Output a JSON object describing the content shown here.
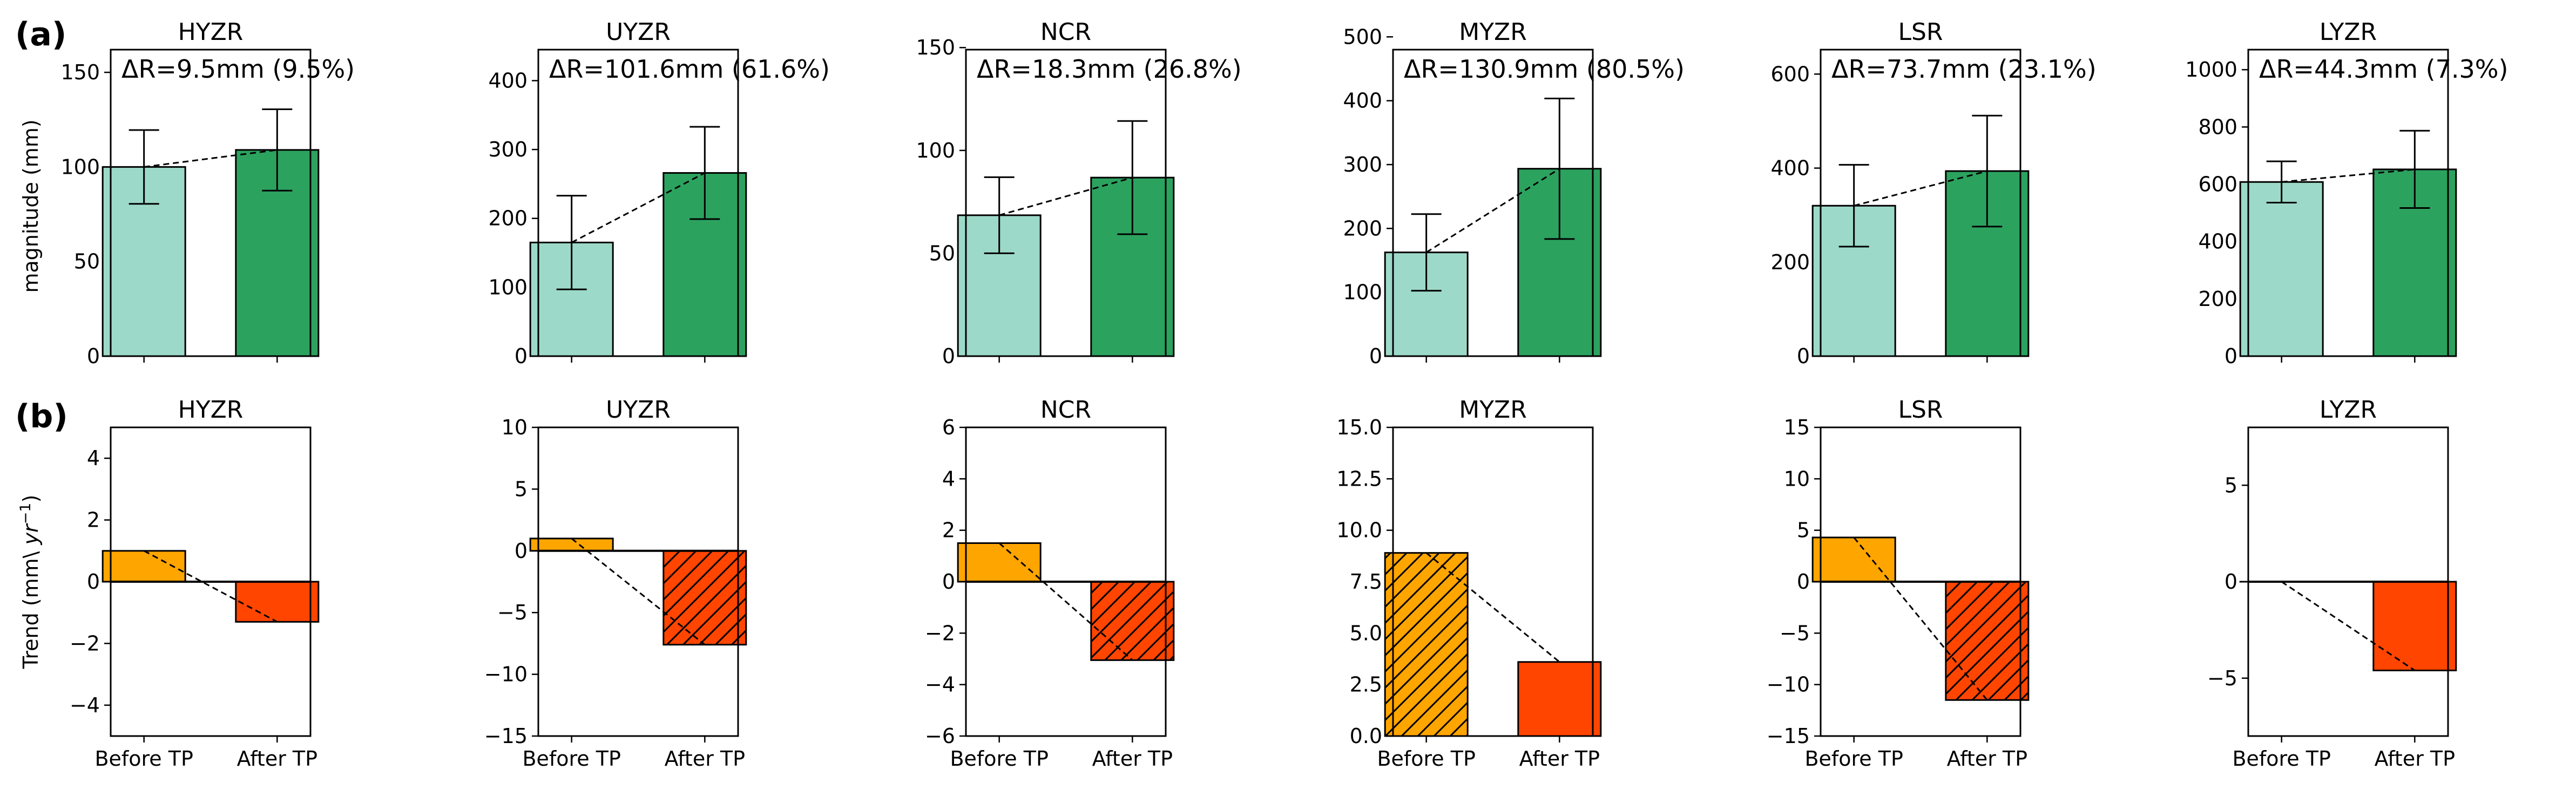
{
  "figure": {
    "row_labels": [
      "(a)",
      "(b)"
    ],
    "ylabel_a": "magnitude (mm)",
    "ylabel_b_prefix": "Trend (mm\\ ",
    "ylabel_b_unit": "yr",
    "ylabel_b_exp": "−1",
    "ylabel_b_suffix": ")"
  },
  "colors": {
    "before_a": "#9dd9c8",
    "after_a": "#2ca25f",
    "before_b": "#ffa500",
    "after_b": "#ff4500",
    "edge": "#000000"
  },
  "chart_data": [
    {
      "type": "bar",
      "row": "a",
      "title": "HYZR",
      "annotation": "ΔR=9.5mm (9.5%)",
      "categories": [
        "Before TP",
        "After TP"
      ],
      "values": [
        100,
        109
      ],
      "errors": [
        19.5,
        21.5
      ],
      "ylim": [
        0,
        162
      ],
      "yticks": [
        0,
        50,
        100,
        150
      ],
      "ylabel": "magnitude (mm)",
      "grid": false
    },
    {
      "type": "bar",
      "row": "a",
      "title": "UYZR",
      "annotation": "ΔR=101.6mm (61.6%)",
      "categories": [
        "Before TP",
        "After TP"
      ],
      "values": [
        165,
        266
      ],
      "errors": [
        68,
        67
      ],
      "ylim": [
        0,
        445
      ],
      "yticks": [
        0,
        100,
        200,
        300,
        400
      ],
      "ylabel": "",
      "grid": false
    },
    {
      "type": "bar",
      "row": "a",
      "title": "NCR",
      "annotation": "ΔR=18.3mm (26.8%)",
      "categories": [
        "Before TP",
        "After TP"
      ],
      "values": [
        68.5,
        86.8
      ],
      "errors": [
        18.5,
        27.5
      ],
      "ylim": [
        0,
        149
      ],
      "yticks": [
        0,
        50,
        100,
        150
      ],
      "ylabel": "",
      "grid": false
    },
    {
      "type": "bar",
      "row": "a",
      "title": "MYZR",
      "annotation": "ΔR=130.9mm (80.5%)",
      "categories": [
        "Before TP",
        "After TP"
      ],
      "values": [
        162.5,
        293.5
      ],
      "errors": [
        60,
        110
      ],
      "ylim": [
        0,
        480
      ],
      "yticks": [
        0,
        100,
        200,
        300,
        400,
        500
      ],
      "ylabel": "",
      "grid": false
    },
    {
      "type": "bar",
      "row": "a",
      "title": "LSR",
      "annotation": "ΔR=73.7mm (23.1%)",
      "categories": [
        "Before TP",
        "After TP"
      ],
      "values": [
        320,
        393.7
      ],
      "errors": [
        87,
        118
      ],
      "ylim": [
        0,
        652
      ],
      "yticks": [
        0,
        200,
        400,
        600
      ],
      "ylabel": "",
      "grid": false
    },
    {
      "type": "bar",
      "row": "a",
      "title": "LYZR",
      "annotation": "ΔR=44.3mm (7.3%)",
      "categories": [
        "Before TP",
        "After TP"
      ],
      "values": [
        608,
        652
      ],
      "errors": [
        72,
        135
      ],
      "ylim": [
        0,
        1070
      ],
      "yticks": [
        0,
        200,
        400,
        600,
        800,
        1000
      ],
      "ylabel": "",
      "grid": false
    },
    {
      "type": "bar",
      "row": "b",
      "title": "HYZR",
      "categories": [
        "Before TP",
        "After TP"
      ],
      "values": [
        1.0,
        -1.3
      ],
      "hatched": [
        false,
        false
      ],
      "ylim": [
        -5,
        5
      ],
      "yticks": [
        -4,
        -2,
        0,
        2,
        4
      ],
      "ylabel": "Trend (mm\\ yr−1)",
      "grid": false
    },
    {
      "type": "bar",
      "row": "b",
      "title": "UYZR",
      "categories": [
        "Before TP",
        "After TP"
      ],
      "values": [
        1.0,
        -7.6
      ],
      "hatched": [
        false,
        true
      ],
      "ylim": [
        -15,
        10
      ],
      "yticks": [
        -15,
        -10,
        -5,
        0,
        5,
        10
      ],
      "ylabel": "",
      "grid": false
    },
    {
      "type": "bar",
      "row": "b",
      "title": "NCR",
      "categories": [
        "Before TP",
        "After TP"
      ],
      "values": [
        1.5,
        -3.05
      ],
      "hatched": [
        false,
        true
      ],
      "ylim": [
        -6,
        6
      ],
      "yticks": [
        -6,
        -4,
        -2,
        0,
        2,
        4,
        6
      ],
      "ylabel": "",
      "grid": false
    },
    {
      "type": "bar",
      "row": "b",
      "title": "MYZR",
      "categories": [
        "Before TP",
        "After TP"
      ],
      "values": [
        8.9,
        3.6
      ],
      "hatched": [
        true,
        false
      ],
      "ylim": [
        0,
        15
      ],
      "yticks": [
        0.0,
        2.5,
        5.0,
        7.5,
        10.0,
        12.5,
        15.0
      ],
      "ytick_decimals": 1,
      "ylabel": "",
      "grid": false
    },
    {
      "type": "bar",
      "row": "b",
      "title": "LSR",
      "categories": [
        "Before TP",
        "After TP"
      ],
      "values": [
        4.3,
        -11.5
      ],
      "hatched": [
        false,
        true
      ],
      "ylim": [
        -15,
        15
      ],
      "yticks": [
        -15,
        -10,
        -5,
        0,
        5,
        10,
        15
      ],
      "ylabel": "",
      "grid": false
    },
    {
      "type": "bar",
      "row": "b",
      "title": "LYZR",
      "categories": [
        "Before TP",
        "After TP"
      ],
      "values": [
        0.0,
        -4.6
      ],
      "hatched": [
        false,
        false
      ],
      "ylim": [
        -8,
        8
      ],
      "yticks": [
        -5,
        0,
        5
      ],
      "ylabel": "",
      "grid": false
    }
  ]
}
